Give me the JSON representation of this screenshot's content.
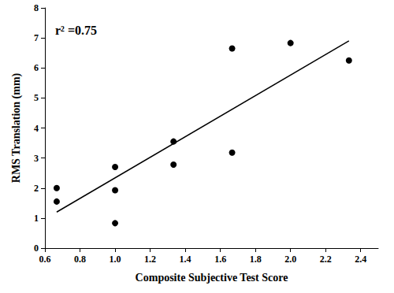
{
  "chart_data": {
    "type": "scatter",
    "x_label": "Composite Subjective Test Score",
    "y_label": "RMS Translation (mm)",
    "annotation": "r² =0.75",
    "series": [
      {
        "type": "scatter",
        "color": "#000000",
        "marker": "circle",
        "x": [
          0.667,
          0.667,
          1.0,
          1.0,
          1.0,
          1.333,
          1.333,
          1.667,
          1.667,
          2.0,
          2.333
        ],
        "values": [
          2.0,
          1.55,
          2.7,
          1.93,
          0.83,
          3.55,
          2.78,
          6.65,
          3.18,
          6.83,
          6.25
        ]
      },
      {
        "type": "line",
        "color": "#000000",
        "line_style": "solid",
        "x": [
          0.667,
          2.333
        ],
        "values": [
          1.2,
          6.9
        ]
      }
    ],
    "xlim": [
      0.6,
      2.5
    ],
    "xticks": [
      0.6,
      0.8,
      {
        "value": 1,
        "label": "1.0"
      },
      1.2,
      1.4,
      1.6,
      1.8,
      {
        "value": 2,
        "label": "2.0"
      },
      2.2,
      2.4
    ],
    "ylim": [
      0,
      8
    ],
    "yticks": [
      0,
      1,
      2,
      3,
      4,
      5,
      6,
      7,
      8
    ],
    "grid": false
  }
}
